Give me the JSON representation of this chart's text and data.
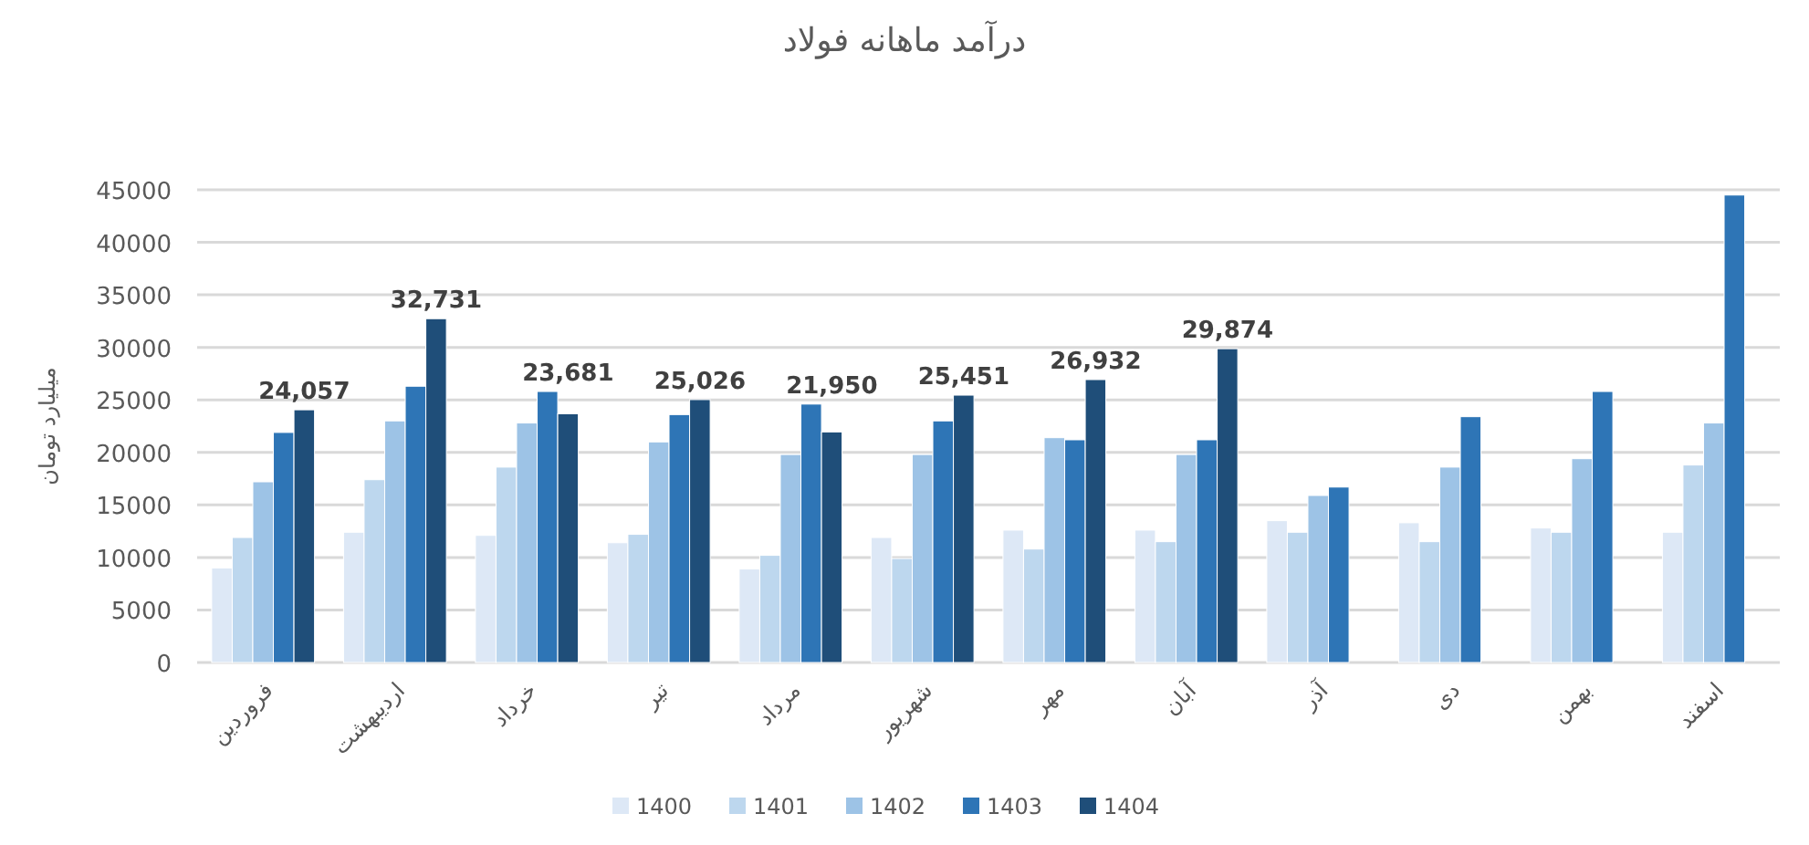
{
  "chart_data": {
    "type": "bar",
    "title": "درآمد ماهانه فولاد",
    "ylabel": "میلیارد تومان",
    "categories": [
      "فروردین",
      "اردیبهشت",
      "خرداد",
      "تیر",
      "مرداد",
      "شهریور",
      "مهر",
      "آبان",
      "آذر",
      "دی",
      "بهمن",
      "اسفند"
    ],
    "series": [
      {
        "name": "1400",
        "color": "#dde8f6",
        "values": [
          9000,
          12400,
          12100,
          11400,
          8900,
          11900,
          12600,
          12600,
          13500,
          13300,
          12800,
          12400
        ]
      },
      {
        "name": "1401",
        "color": "#bdd7ee",
        "values": [
          11900,
          17400,
          18600,
          12200,
          10200,
          9900,
          10800,
          11500,
          12400,
          11500,
          12400,
          18800
        ]
      },
      {
        "name": "1402",
        "color": "#9dc3e6",
        "values": [
          17200,
          23000,
          22800,
          21000,
          19800,
          19800,
          21400,
          19800,
          15900,
          18600,
          19400,
          22800
        ]
      },
      {
        "name": "1403",
        "color": "#2e75b6",
        "values": [
          21900,
          26300,
          25800,
          23600,
          24600,
          23000,
          21200,
          21200,
          16700,
          23400,
          25800,
          44500
        ]
      },
      {
        "name": "1404",
        "color": "#1f4e79",
        "values": [
          24057,
          32731,
          23681,
          25026,
          21950,
          25451,
          26932,
          29874,
          null,
          null,
          null,
          null
        ],
        "value_labels": [
          "24,057",
          "32,731",
          "23,681",
          "25,026",
          "21,950",
          "25,451",
          "26,932",
          "29,874",
          null,
          null,
          null,
          null
        ]
      }
    ],
    "ylim": [
      0,
      45000
    ],
    "yticks": [
      0,
      5000,
      10000,
      15000,
      20000,
      25000,
      30000,
      35000,
      40000,
      45000
    ],
    "grid": "y",
    "legend": "bottom"
  }
}
